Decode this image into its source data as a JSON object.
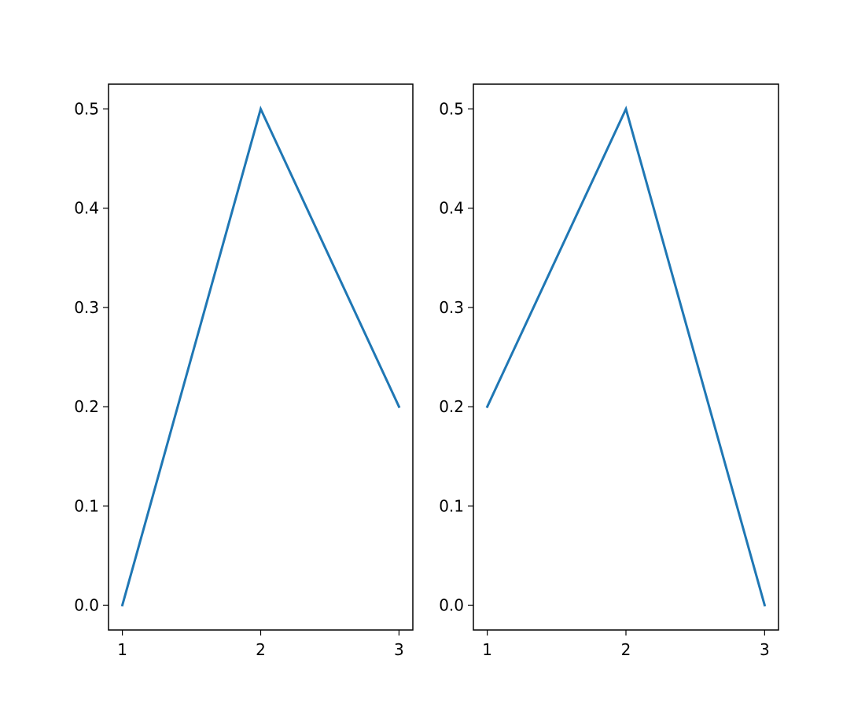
{
  "chart_data": [
    {
      "type": "line",
      "title": "",
      "xlabel": "",
      "ylabel": "",
      "x": [
        1,
        2,
        3
      ],
      "series": [
        {
          "values": [
            0.0,
            0.5,
            0.2
          ],
          "color": "#1f77b4"
        }
      ],
      "xlim": [
        0.9,
        3.1
      ],
      "ylim": [
        -0.025,
        0.525
      ],
      "xticks": [
        1,
        2,
        3
      ],
      "xtick_labels": [
        "1",
        "2",
        "3"
      ],
      "yticks": [
        0.0,
        0.1,
        0.2,
        0.3,
        0.4,
        0.5
      ],
      "ytick_labels": [
        "0.0",
        "0.1",
        "0.2",
        "0.3",
        "0.4",
        "0.5"
      ],
      "grid": false
    },
    {
      "type": "line",
      "title": "",
      "xlabel": "",
      "ylabel": "",
      "x": [
        1,
        2,
        3
      ],
      "series": [
        {
          "values": [
            0.2,
            0.5,
            0.0
          ],
          "color": "#1f77b4"
        }
      ],
      "xlim": [
        0.9,
        3.1
      ],
      "ylim": [
        -0.025,
        0.525
      ],
      "xticks": [
        1,
        2,
        3
      ],
      "xtick_labels": [
        "1",
        "2",
        "3"
      ],
      "yticks": [
        0.0,
        0.1,
        0.2,
        0.3,
        0.4,
        0.5
      ],
      "ytick_labels": [
        "0.0",
        "0.1",
        "0.2",
        "0.3",
        "0.4",
        "0.5"
      ],
      "grid": false
    }
  ]
}
